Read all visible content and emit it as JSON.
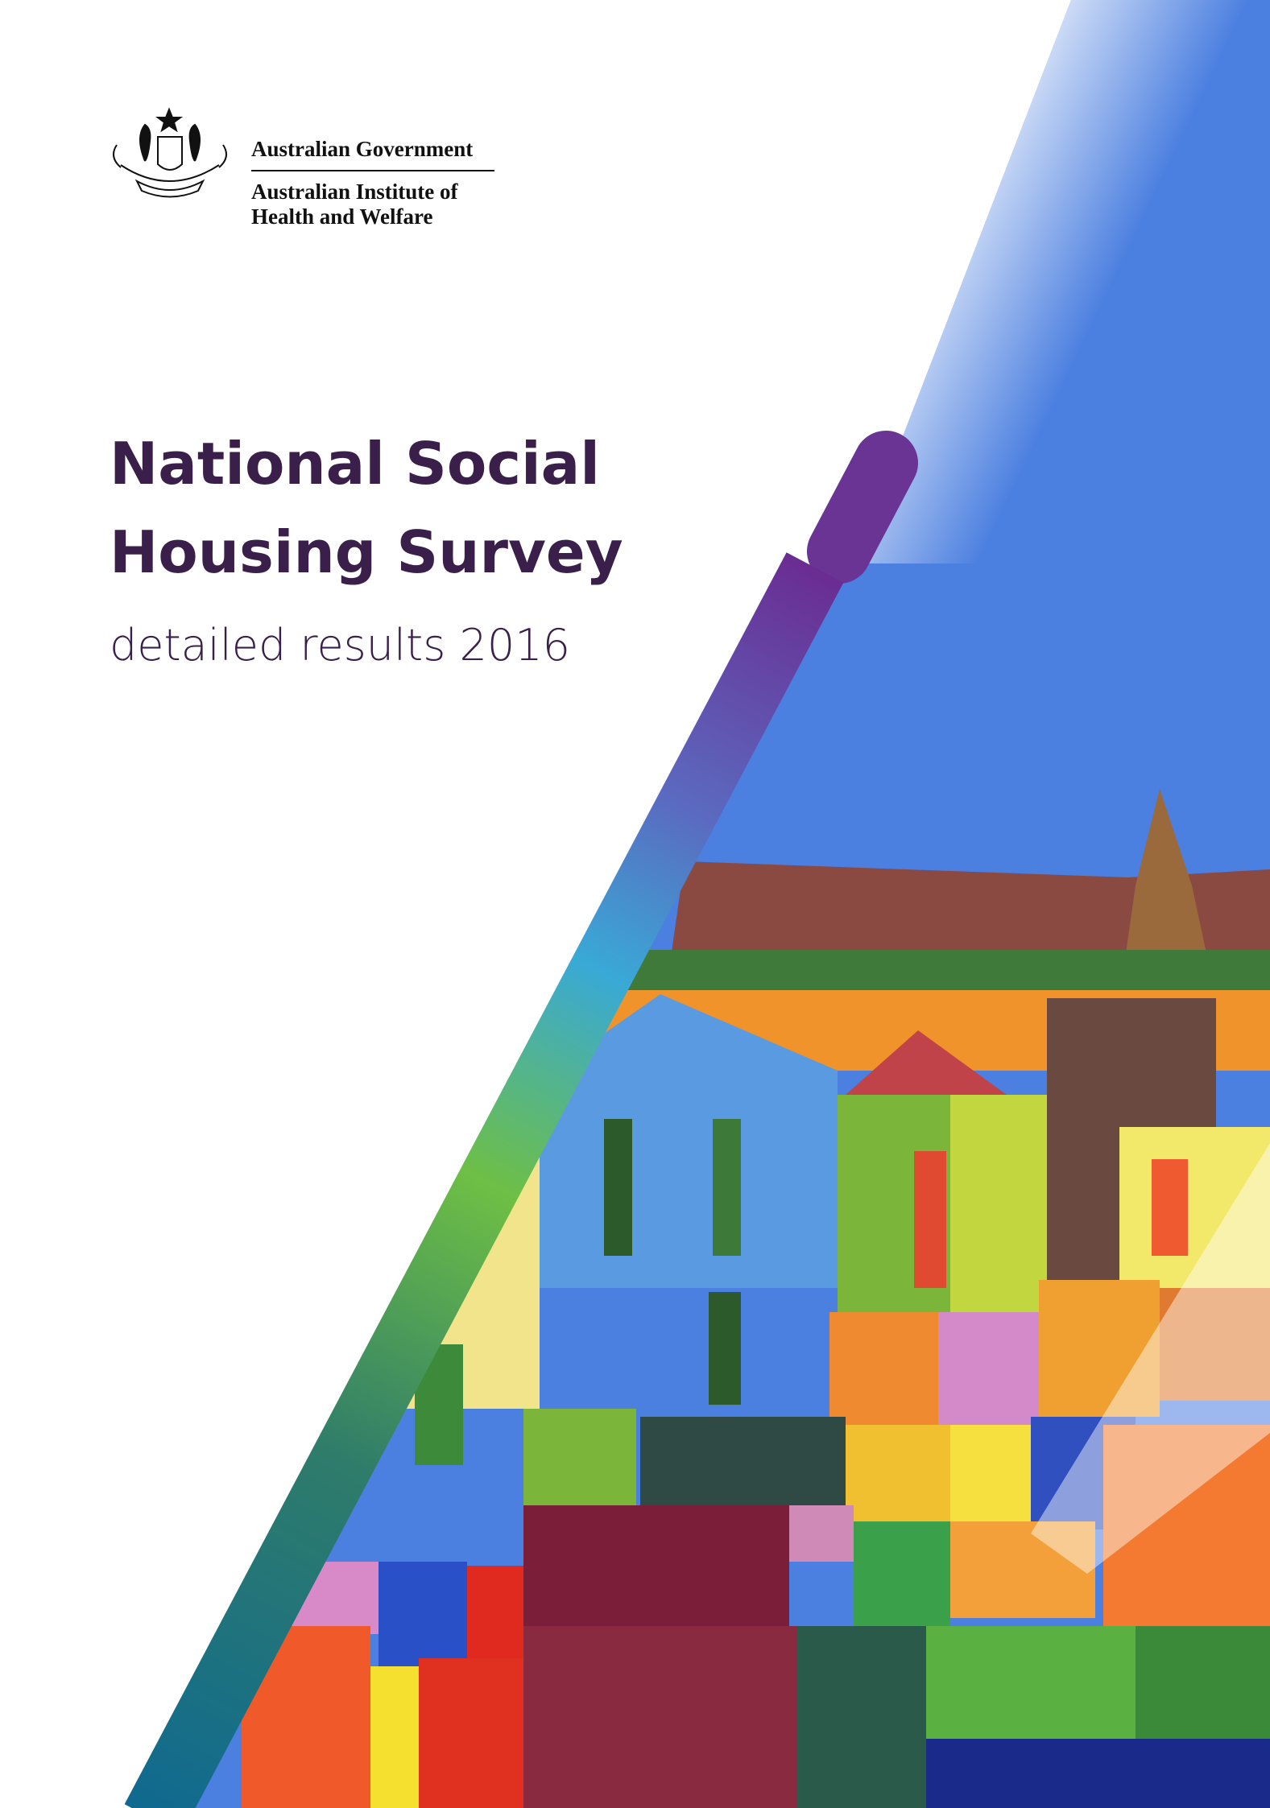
{
  "header": {
    "government": "Australian Government",
    "institute": [
      "Australian Institute of",
      "Health and Welfare"
    ]
  },
  "title": [
    "National Social",
    "Housing Survey"
  ],
  "subtitle": "detailed results 2016"
}
